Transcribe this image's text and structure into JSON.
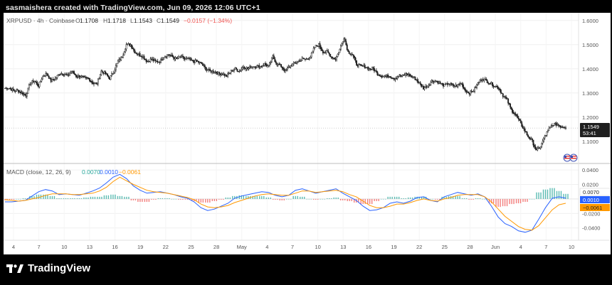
{
  "header": {
    "attribution": "sasmaishera created with TradingView.com, Jun 09, 2026 12:06 UTC+1"
  },
  "footer": {
    "brand": "TradingView",
    "brand_icon": "tradingview-logo-icon"
  },
  "colors": {
    "up": "#26a69a",
    "down": "#ef5350",
    "candle": "#1f1f1f",
    "macd": "#2962ff",
    "signal": "#ff9800",
    "hist_up": "#26a69a",
    "hist_down": "#ef5350"
  },
  "legend": {
    "symbol": "XRPUSD · 4h · Coinbase",
    "o_label": "O",
    "o_value": "1.1708",
    "h_label": "H",
    "h_value": "1.1718",
    "l_label": "L",
    "l_value": "1.1543",
    "c_label": "C",
    "c_value": "1.1549",
    "change": "−0.0157 (−1.34%)"
  },
  "macd_legend": {
    "label": "MACD (close, 12, 26, 9)",
    "hist": "0.0070",
    "macd": "0.0010",
    "signal": "−0.0061"
  },
  "price_badge": {
    "value": "1.1549",
    "countdown": "53:41"
  },
  "chart_data": [
    {
      "type": "candlestick",
      "y_ticks": [
        "1.6000",
        "1.5000",
        "1.4000",
        "1.3000",
        "1.2000",
        "1.1000"
      ],
      "ylim": [
        1.02,
        1.62
      ],
      "x_ticks": [
        "4",
        "7",
        "10",
        "13",
        "16",
        "19",
        "22",
        "25",
        "28",
        "May",
        "4",
        "7",
        "10",
        "13",
        "16",
        "19",
        "22",
        "25",
        "28",
        "Jun",
        "4",
        "7",
        "10"
      ],
      "close_trend": [
        1.32,
        1.32,
        1.31,
        1.31,
        1.3,
        1.29,
        1.34,
        1.35,
        1.33,
        1.37,
        1.38,
        1.35,
        1.36,
        1.38,
        1.38,
        1.37,
        1.39,
        1.37,
        1.37,
        1.36,
        1.36,
        1.34,
        1.34,
        1.39,
        1.38,
        1.36,
        1.39,
        1.43,
        1.45,
        1.5,
        1.5,
        1.47,
        1.46,
        1.45,
        1.43,
        1.44,
        1.43,
        1.43,
        1.45,
        1.46,
        1.45,
        1.44,
        1.45,
        1.44,
        1.44,
        1.43,
        1.43,
        1.42,
        1.4,
        1.39,
        1.39,
        1.38,
        1.38,
        1.37,
        1.39,
        1.4,
        1.39,
        1.41,
        1.4,
        1.41,
        1.41,
        1.41,
        1.42,
        1.41,
        1.45,
        1.42,
        1.41,
        1.39,
        1.41,
        1.42,
        1.43,
        1.44,
        1.44,
        1.45,
        1.49,
        1.5,
        1.47,
        1.47,
        1.45,
        1.44,
        1.48,
        1.53,
        1.47,
        1.46,
        1.42,
        1.41,
        1.41,
        1.4,
        1.4,
        1.38,
        1.37,
        1.37,
        1.37,
        1.36,
        1.37,
        1.37,
        1.38,
        1.37,
        1.36,
        1.34,
        1.32,
        1.33,
        1.35,
        1.35,
        1.34,
        1.33,
        1.34,
        1.33,
        1.33,
        1.34,
        1.31,
        1.3,
        1.31,
        1.34,
        1.36,
        1.35,
        1.34,
        1.33,
        1.32,
        1.29,
        1.27,
        1.23,
        1.21,
        1.18,
        1.15,
        1.12,
        1.1,
        1.06,
        1.08,
        1.12,
        1.15,
        1.17,
        1.17,
        1.16,
        1.16
      ],
      "last_price": 1.1549
    },
    {
      "type": "macd",
      "y_ticks": [
        "0.0400",
        "0.0200",
        "0",
        "-0.0200",
        "-0.0400"
      ],
      "ylim": [
        -0.055,
        0.047
      ],
      "macd": [
        -0.004,
        -0.004,
        -0.003,
        -0.002,
        0.004,
        0.01,
        0.013,
        0.011,
        0.006,
        0.007,
        0.006,
        0.005,
        0.008,
        0.011,
        0.015,
        0.022,
        0.03,
        0.034,
        0.028,
        0.018,
        0.012,
        0.008,
        0.009,
        0.01,
        0.008,
        0.006,
        0.003,
        0.001,
        -0.004,
        -0.012,
        -0.016,
        -0.014,
        -0.01,
        -0.006,
        0.001,
        0.004,
        0.006,
        0.008,
        0.01,
        0.009,
        0.005,
        0.003,
        0.005,
        0.012,
        0.014,
        0.011,
        0.008,
        0.01,
        0.012,
        0.014,
        0.008,
        0.003,
        -0.002,
        -0.01,
        -0.016,
        -0.015,
        -0.012,
        -0.006,
        -0.004,
        -0.006,
        -0.003,
        0.002,
        0.003,
        -0.002,
        -0.004,
        0.003,
        0.006,
        0.009,
        0.007,
        0.005,
        0.007,
        0.003,
        -0.01,
        -0.025,
        -0.034,
        -0.038,
        -0.044,
        -0.046,
        -0.043,
        -0.028,
        -0.012,
        0.001,
        0.003,
        0.001
      ],
      "signal": [
        -0.001,
        -0.002,
        -0.003,
        -0.002,
        0.0,
        0.002,
        0.005,
        0.007,
        0.007,
        0.007,
        0.006,
        0.006,
        0.007,
        0.008,
        0.011,
        0.016,
        0.024,
        0.03,
        0.025,
        0.02,
        0.016,
        0.012,
        0.01,
        0.009,
        0.008,
        0.006,
        0.004,
        0.002,
        -0.001,
        -0.007,
        -0.011,
        -0.012,
        -0.011,
        -0.009,
        -0.005,
        -0.002,
        0.001,
        0.004,
        0.006,
        0.007,
        0.006,
        0.005,
        0.005,
        0.008,
        0.011,
        0.011,
        0.009,
        0.01,
        0.011,
        0.012,
        0.01,
        0.006,
        0.003,
        -0.003,
        -0.009,
        -0.012,
        -0.012,
        -0.01,
        -0.007,
        -0.007,
        -0.005,
        -0.002,
        -0.0,
        -0.002,
        -0.003,
        -0.0,
        0.002,
        0.005,
        0.006,
        0.006,
        0.006,
        0.003,
        -0.004,
        -0.014,
        -0.024,
        -0.031,
        -0.038,
        -0.042,
        -0.043,
        -0.037,
        -0.026,
        -0.015,
        -0.008,
        -0.006
      ],
      "histogram": [
        -0.002,
        -0.001,
        0.0,
        0.001,
        0.004,
        0.006,
        0.006,
        0.004,
        0.001,
        0.001,
        0.001,
        0.001,
        0.002,
        0.003,
        0.003,
        0.005,
        0.006,
        0.004,
        0.003,
        -0.002,
        -0.004,
        -0.004,
        -0.001,
        0.001,
        0.001,
        0.0,
        -0.001,
        -0.001,
        -0.003,
        -0.005,
        -0.005,
        -0.003,
        -0.001,
        0.002,
        0.004,
        0.005,
        0.004,
        0.004,
        0.004,
        0.002,
        -0.001,
        -0.002,
        0.0,
        0.004,
        0.003,
        0.0,
        -0.001,
        0.0,
        0.001,
        0.002,
        -0.002,
        -0.003,
        -0.005,
        -0.007,
        -0.007,
        -0.003,
        -0.0,
        0.003,
        0.003,
        0.001,
        0.002,
        0.003,
        0.003,
        0.0,
        -0.001,
        0.003,
        0.004,
        0.004,
        0.001,
        -0.001,
        0.001,
        0.0,
        -0.006,
        -0.011,
        -0.01,
        -0.007,
        -0.006,
        -0.004,
        0.0,
        0.009,
        0.013,
        0.015,
        0.011,
        0.007
      ]
    }
  ]
}
